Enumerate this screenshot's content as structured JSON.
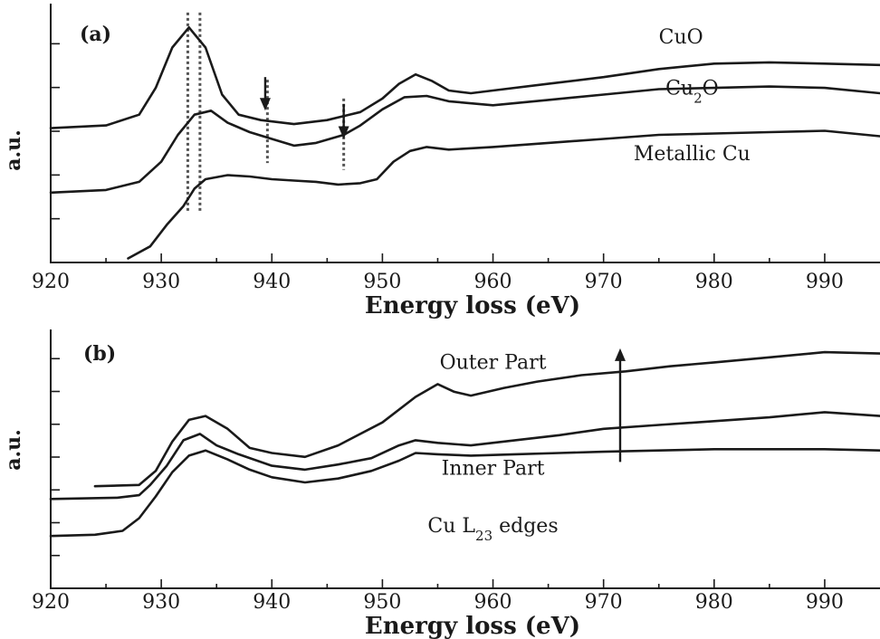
{
  "chart_data": [
    {
      "panel_label": "(a)",
      "type": "line",
      "xlabel": "Energy loss (eV)",
      "ylabel": "a.u.",
      "xlim": [
        920,
        995
      ],
      "xticks": [
        920,
        930,
        940,
        950,
        960,
        970,
        980,
        990
      ],
      "grid": false,
      "series": [
        {
          "name": "CuO",
          "label": "CuO",
          "label_sub": "",
          "label_tail": "",
          "label_x": 977,
          "label_y": 16.3,
          "x": [
            920,
            925,
            928,
            929.5,
            931,
            932.5,
            934,
            935.5,
            937,
            939,
            942,
            945,
            948,
            950,
            951.5,
            953,
            954.5,
            956,
            958,
            960,
            965,
            970,
            975,
            980,
            985,
            990,
            995
          ],
          "y": [
            10,
            10.2,
            11,
            13,
            16,
            17.5,
            16,
            12.5,
            11,
            10.6,
            10.3,
            10.6,
            11.2,
            12.2,
            13.3,
            14,
            13.5,
            12.8,
            12.6,
            12.8,
            13.3,
            13.8,
            14.4,
            14.8,
            14.9,
            14.8,
            14.7
          ]
        },
        {
          "name": "Cu2O",
          "label": "Cu",
          "label_sub": "2",
          "label_tail": "O",
          "label_x": 978,
          "label_y": 12.5,
          "x": [
            920,
            925,
            928,
            930,
            931.5,
            933,
            934.5,
            936,
            938,
            940,
            942,
            944,
            946.5,
            948,
            950,
            952,
            954,
            956,
            960,
            965,
            970,
            975,
            980,
            985,
            990,
            995
          ],
          "y": [
            5.2,
            5.4,
            6,
            7.5,
            9.5,
            11,
            11.3,
            10.4,
            9.7,
            9.2,
            8.7,
            8.9,
            9.5,
            10.2,
            11.4,
            12.3,
            12.4,
            12,
            11.7,
            12.1,
            12.5,
            12.9,
            13,
            13.1,
            13,
            12.6
          ]
        },
        {
          "name": "Metallic Cu",
          "label": "Metallic Cu",
          "label_sub": "",
          "label_tail": "",
          "label_x": 978,
          "label_y": 7.6,
          "x": [
            927,
            929,
            930.5,
            932,
            933,
            934,
            936,
            938,
            940,
            942,
            944,
            946,
            948,
            949.5,
            951,
            952.5,
            954,
            956,
            960,
            965,
            970,
            975,
            980,
            985,
            990,
            995
          ],
          "y": [
            0.3,
            1.2,
            2.8,
            4.2,
            5.5,
            6.2,
            6.5,
            6.4,
            6.2,
            6.1,
            6,
            5.8,
            5.9,
            6.2,
            7.5,
            8.3,
            8.6,
            8.4,
            8.6,
            8.9,
            9.2,
            9.5,
            9.6,
            9.7,
            9.8,
            9.4
          ]
        }
      ],
      "dashed_guides_x": [
        932.4,
        933.5,
        939.6,
        946.5
      ],
      "arrows": [
        {
          "x": 939.4,
          "y_from": 13.8,
          "y_to": 11.3
        },
        {
          "x": 946.5,
          "y_from": 11.8,
          "y_to": 9.2
        }
      ]
    },
    {
      "panel_label": "(b)",
      "type": "line",
      "xlabel": "Energy loss (eV)",
      "ylabel": "a.u.",
      "xlim": [
        920,
        995
      ],
      "xticks": [
        920,
        930,
        940,
        950,
        960,
        970,
        980,
        990
      ],
      "grid": false,
      "series": [
        {
          "name": "Outer Part",
          "label": "Outer Part",
          "label_sub": "",
          "label_tail": "",
          "label_x": 960,
          "label_y": 17.2,
          "x": [
            924,
            928,
            929.5,
            931,
            932.5,
            934,
            936,
            938,
            940,
            943,
            946,
            950,
            953,
            955,
            956.5,
            958,
            961,
            964,
            968,
            972,
            976,
            980,
            985,
            990,
            995
          ],
          "y": [
            8,
            8.1,
            9.2,
            11.5,
            13.2,
            13.5,
            12.5,
            11,
            10.6,
            10.3,
            11.2,
            13,
            15,
            16,
            15.4,
            15.1,
            15.7,
            16.2,
            16.7,
            17,
            17.4,
            17.7,
            18.1,
            18.5,
            18.4
          ]
        },
        {
          "name": "Inner Part",
          "label": "Inner Part",
          "label_sub": "",
          "label_tail": "",
          "label_x": 960,
          "label_y": 8.9,
          "x": [
            920,
            926,
            928,
            929,
            930.5,
            932,
            933.5,
            935,
            937,
            940,
            943,
            946,
            949,
            951.5,
            953,
            955,
            958,
            962,
            966,
            970,
            975,
            980,
            985,
            990,
            995
          ],
          "y": [
            7,
            7.1,
            7.3,
            8.1,
            9.6,
            11.6,
            12.1,
            11.2,
            10.5,
            9.6,
            9.3,
            9.7,
            10.2,
            11.2,
            11.6,
            11.4,
            11.2,
            11.6,
            12,
            12.5,
            12.8,
            13.1,
            13.4,
            13.8,
            13.5
          ]
        },
        {
          "name": "Cu L23 edges",
          "label": "Cu L",
          "label_sub": "23",
          "label_tail": " edges",
          "label_x": 960,
          "label_y": 4.4,
          "x": [
            920,
            924,
            926.5,
            928,
            929.5,
            931,
            932.5,
            934,
            936,
            938,
            940,
            943,
            946,
            949,
            951.5,
            953,
            955,
            958,
            962,
            966,
            970,
            975,
            980,
            985,
            990,
            995
          ],
          "y": [
            4.1,
            4.2,
            4.5,
            5.5,
            7.2,
            9.1,
            10.4,
            10.8,
            10.1,
            9.3,
            8.7,
            8.3,
            8.6,
            9.2,
            10,
            10.6,
            10.5,
            10.4,
            10.5,
            10.6,
            10.7,
            10.8,
            10.9,
            10.9,
            10.9,
            10.8
          ]
        }
      ],
      "arrows": [
        {
          "x": 971.5,
          "y_from": 9.9,
          "y_to": 18.8
        }
      ]
    }
  ]
}
